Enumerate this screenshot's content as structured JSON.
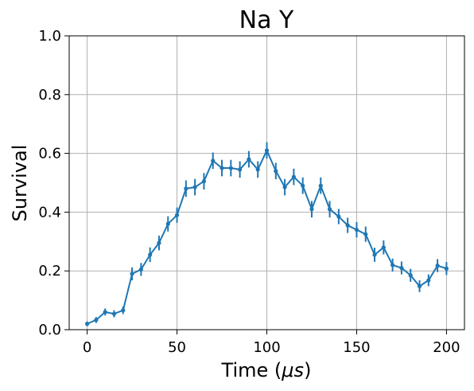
{
  "chart_data": {
    "type": "line",
    "title": "Na Y",
    "xlabel": "Time (",
    "xlabel_symbol": "μs",
    "xlabel_close": ")",
    "ylabel": "Survival",
    "xlim": [
      -10,
      210
    ],
    "ylim": [
      0.0,
      1.0
    ],
    "xticks": [
      0,
      50,
      100,
      150,
      200
    ],
    "xtick_labels": [
      "0",
      "50",
      "100",
      "150",
      "200"
    ],
    "yticks": [
      0.0,
      0.2,
      0.4,
      0.6,
      0.8,
      1.0
    ],
    "ytick_labels": [
      "0.0",
      "0.2",
      "0.4",
      "0.6",
      "0.8",
      "1.0"
    ],
    "grid": true,
    "color": "#1f77b4",
    "series": [
      {
        "x": [
          0,
          5,
          10,
          15,
          20,
          25,
          30,
          35,
          40,
          45,
          50,
          55,
          60,
          65,
          70,
          75,
          80,
          85,
          90,
          95,
          100,
          105,
          110,
          115,
          120,
          125,
          130,
          135,
          140,
          145,
          150,
          155,
          160,
          165,
          170,
          175,
          180,
          185,
          190,
          195,
          200
        ],
        "y": [
          0.02,
          0.033,
          0.06,
          0.054,
          0.066,
          0.19,
          0.205,
          0.255,
          0.295,
          0.36,
          0.39,
          0.48,
          0.485,
          0.505,
          0.575,
          0.55,
          0.55,
          0.545,
          0.58,
          0.545,
          0.61,
          0.54,
          0.485,
          0.52,
          0.49,
          0.41,
          0.49,
          0.41,
          0.385,
          0.355,
          0.34,
          0.325,
          0.255,
          0.28,
          0.22,
          0.21,
          0.185,
          0.148,
          0.168,
          0.218,
          0.208
        ],
        "yerr": [
          0.008,
          0.01,
          0.012,
          0.012,
          0.013,
          0.022,
          0.022,
          0.025,
          0.025,
          0.026,
          0.026,
          0.028,
          0.028,
          0.028,
          0.028,
          0.028,
          0.028,
          0.028,
          0.028,
          0.028,
          0.028,
          0.028,
          0.028,
          0.028,
          0.028,
          0.028,
          0.028,
          0.028,
          0.026,
          0.026,
          0.026,
          0.026,
          0.024,
          0.024,
          0.022,
          0.022,
          0.022,
          0.02,
          0.02,
          0.022,
          0.022
        ]
      }
    ]
  }
}
